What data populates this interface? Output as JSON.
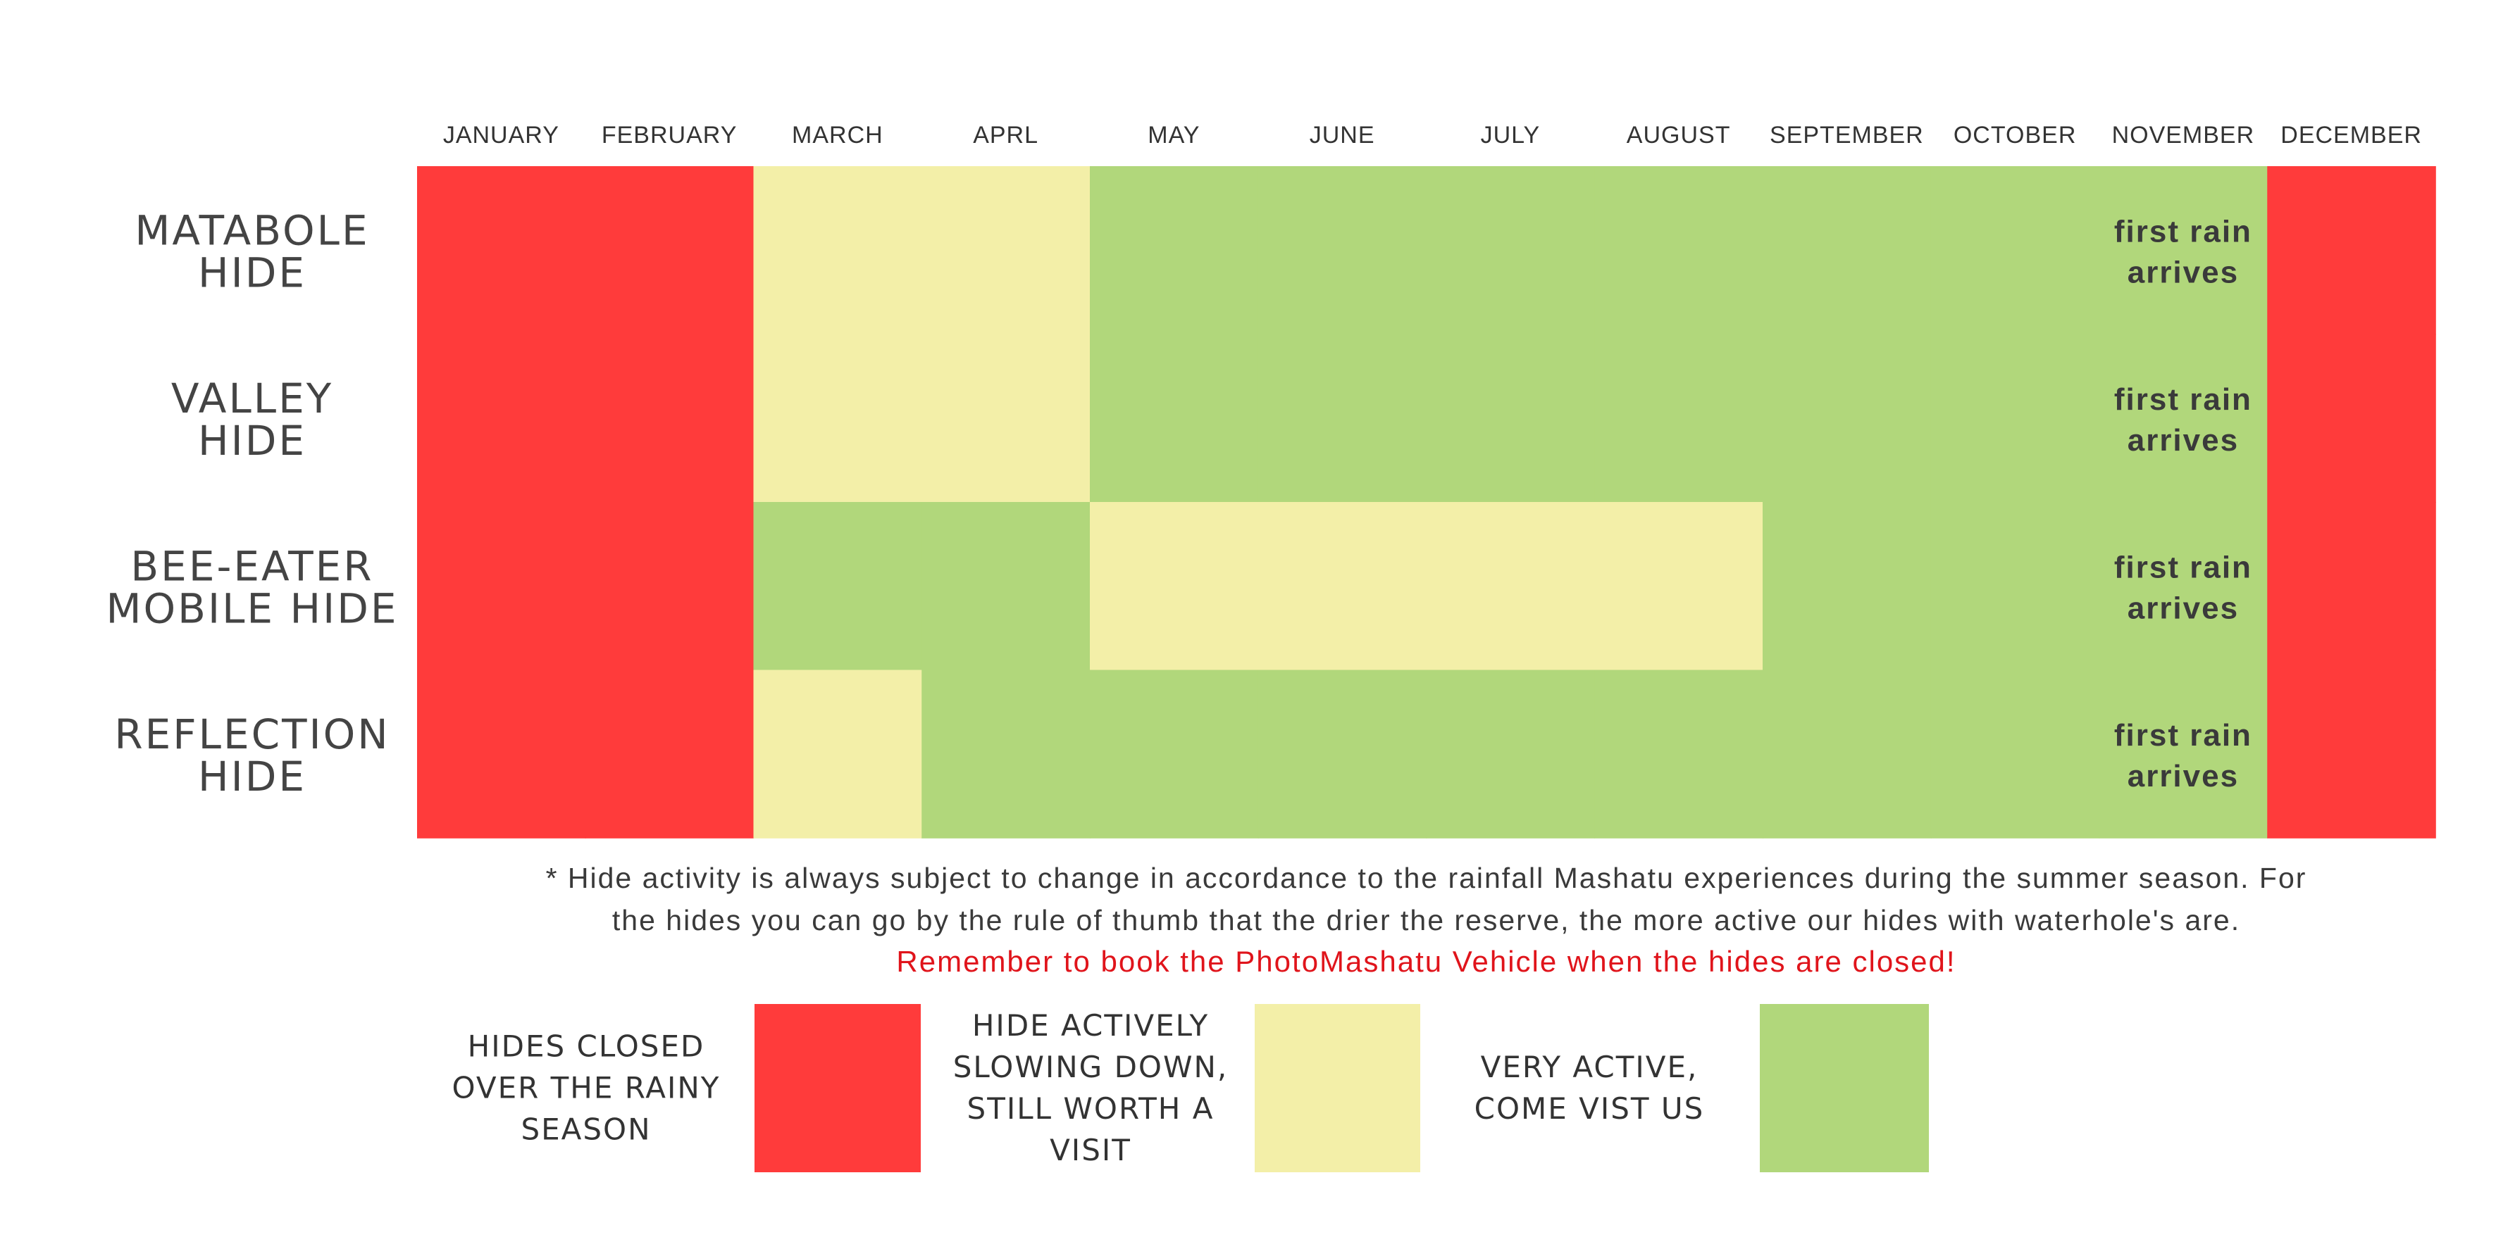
{
  "chart_data": {
    "type": "heatmap",
    "categories": [
      "JANUARY",
      "FEBRUARY",
      "MARCH",
      "APRL",
      "MAY",
      "JUNE",
      "JULY",
      "AUGUST",
      "SEPTEMBER",
      "OCTOBER",
      "NOVEMBER",
      "DECEMBER"
    ],
    "rows": [
      {
        "label": [
          "MATABOLE",
          "HIDE"
        ],
        "values": [
          "closed",
          "closed",
          "slowing",
          "slowing",
          "active",
          "active",
          "active",
          "active",
          "active",
          "active",
          "active",
          "closed"
        ],
        "note": [
          "first rain",
          "arrives"
        ]
      },
      {
        "label": [
          "VALLEY",
          "HIDE"
        ],
        "values": [
          "closed",
          "closed",
          "slowing",
          "slowing",
          "active",
          "active",
          "active",
          "active",
          "active",
          "active",
          "active",
          "closed"
        ],
        "note": [
          "first rain",
          "arrives"
        ]
      },
      {
        "label": [
          "BEE-EATER",
          "MOBILE HIDE"
        ],
        "values": [
          "closed",
          "closed",
          "active",
          "active",
          "slowing",
          "slowing",
          "slowing",
          "slowing",
          "active",
          "active",
          "active",
          "closed"
        ],
        "note": [
          "first rain",
          "arrives"
        ]
      },
      {
        "label": [
          "REFLECTION",
          "HIDE"
        ],
        "values": [
          "closed",
          "closed",
          "slowing",
          "active",
          "active",
          "active",
          "active",
          "active",
          "active",
          "active",
          "active",
          "closed"
        ],
        "note": [
          "first rain",
          "arrives"
        ]
      }
    ],
    "note_month": "NOVEMBER",
    "status_colors": {
      "closed": "#ff3b3b",
      "slowing": "#f3efa8",
      "active": "#b1d77b"
    },
    "legend": [
      {
        "status": "closed",
        "label": [
          "HIDES CLOSED",
          "OVER THE RAINY",
          "SEASON"
        ]
      },
      {
        "status": "slowing",
        "label": [
          "HIDE ACTIVELY",
          "SLOWING DOWN,",
          "STILL WORTH A",
          "VISIT"
        ]
      },
      {
        "status": "active",
        "label": [
          "VERY ACTIVE,",
          "COME VIST US"
        ]
      }
    ],
    "footnote": [
      "* Hide activity is always subject to change in accordance to the rainfall Mashatu experiences during the summer season. For",
      "the hides you can go by the rule of thumb that the drier the reserve, the more active our hides with waterhole's are."
    ],
    "warning": "Remember to book the PhotoMashatu Vehicle when the hides are closed!"
  }
}
